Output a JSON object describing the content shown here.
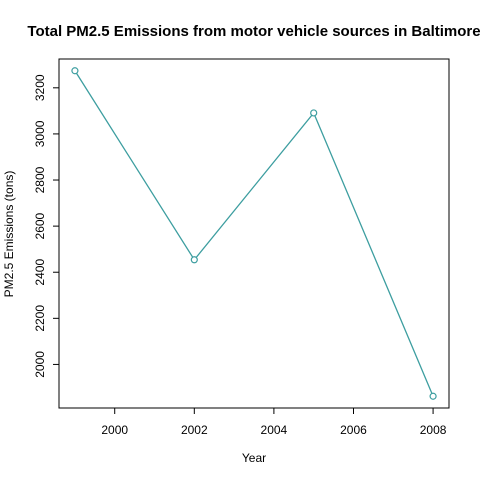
{
  "chart_data": {
    "type": "line",
    "title": "Total PM2.5 Emissions from motor vehicle sources in Baltimore",
    "xlabel": "Year",
    "ylabel": "PM2.5 Emissions (tons)",
    "x": [
      1999,
      2002,
      2005,
      2008
    ],
    "series": [
      {
        "values": [
          3274,
          2454,
          3091,
          1862
        ]
      }
    ],
    "xlim": [
      1998.6,
      2008.4
    ],
    "ylim": [
      1811,
      3325
    ],
    "xticks": [
      "2000",
      "2002",
      "2004",
      "2006",
      "2008"
    ],
    "yticks": [
      "2000",
      "2200",
      "2400",
      "2600",
      "2800",
      "3000",
      "3200"
    ],
    "grid": false,
    "marker": "open-circle",
    "line_color": "#3d9ea0"
  }
}
